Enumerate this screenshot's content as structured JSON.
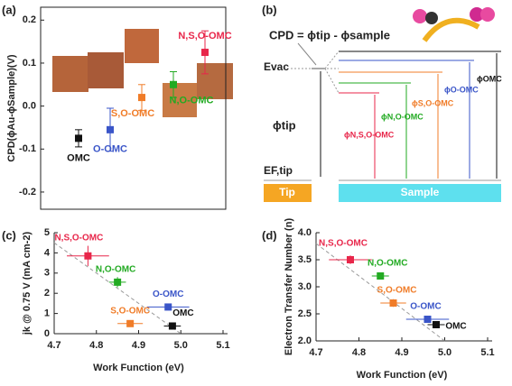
{
  "chart_data": [
    {
      "type": "errorbar",
      "panel": "(a)",
      "ylabel": "CPD(ϕAu-ϕSample)(V)",
      "categories": [
        "OMC",
        "O-OMC",
        "S,O-OMC",
        "N,O-OMC",
        "N,S,O-OMC"
      ],
      "values": [
        -0.075,
        -0.055,
        0.02,
        0.05,
        0.125
      ],
      "errors": [
        0.02,
        0.05,
        0.03,
        0.03,
        0.05
      ],
      "colors": [
        "#111111",
        "#3a55c8",
        "#f07c28",
        "#22aa22",
        "#e8264a"
      ],
      "ylim": [
        -0.24,
        0.23
      ],
      "yticks": [
        0.2,
        0.1,
        {
          "value": 0,
          "label": "0.0"
        },
        -0.1,
        -0.2
      ]
    },
    {
      "type": "scatter",
      "panel": "(c)",
      "xlabel": "Work Function (eV)",
      "ylabel": "jk @ 0.75 V (mA cm-2)",
      "xlim": [
        4.7,
        5.1
      ],
      "xticks": [
        4.7,
        4.8,
        4.9,
        {
          "value": 5,
          "label": "5.0"
        },
        5.1
      ],
      "ylim": [
        0,
        5
      ],
      "yticks": [
        0,
        1,
        2,
        3,
        4,
        5
      ],
      "series": [
        {
          "name": "N,S,O-OMC",
          "color": "#e8264a",
          "x": [
            4.78
          ],
          "values": [
            3.85
          ],
          "xerr": [
            0.05
          ],
          "yerr": [
            0.5
          ]
        },
        {
          "name": "N,O-OMC",
          "color": "#22aa22",
          "x": [
            4.85
          ],
          "values": [
            2.55
          ],
          "xerr": [
            0.02
          ],
          "yerr": [
            0.25
          ]
        },
        {
          "name": "O-OMC",
          "color": "#3a55c8",
          "x": [
            4.97
          ],
          "values": [
            1.32
          ],
          "xerr": [
            0.05
          ],
          "yerr": [
            0.1
          ]
        },
        {
          "name": "S,O-OMC",
          "color": "#f07c28",
          "x": [
            4.88
          ],
          "values": [
            0.5
          ],
          "xerr": [
            0.03
          ],
          "yerr": [
            0.08
          ]
        },
        {
          "name": "OMC",
          "color": "#111111",
          "x": [
            4.98
          ],
          "values": [
            0.38
          ],
          "xerr": [
            0.02
          ],
          "yerr": [
            0.15
          ]
        }
      ],
      "fit": {
        "x": [
          4.7,
          5.0
        ],
        "y": [
          4.5,
          0
        ]
      }
    },
    {
      "type": "scatter",
      "panel": "(d)",
      "xlabel": "Work Function (eV)",
      "ylabel": "Electron Transfer Number (n)",
      "xlim": [
        4.7,
        5.1
      ],
      "xticks": [
        4.7,
        4.8,
        4.9,
        {
          "value": 5,
          "label": "5.0"
        },
        5.1
      ],
      "ylim": [
        2,
        4
      ],
      "yticks": [
        {
          "value": 2,
          "label": "2.0"
        },
        2.5,
        {
          "value": 3,
          "label": "3.0"
        },
        3.5,
        {
          "value": 4,
          "label": "4.0"
        }
      ],
      "series": [
        {
          "name": "N,S,O-OMC",
          "color": "#e8264a",
          "x": [
            4.78
          ],
          "values": [
            3.5
          ],
          "xerr": [
            0.05
          ],
          "yerr": [
            0.08
          ]
        },
        {
          "name": "N,O-OMC",
          "color": "#22aa22",
          "x": [
            4.85
          ],
          "values": [
            3.2
          ],
          "xerr": [
            0.02
          ],
          "yerr": [
            0.05
          ]
        },
        {
          "name": "S,O-OMC",
          "color": "#f07c28",
          "x": [
            4.88
          ],
          "values": [
            2.7
          ],
          "xerr": [
            0.03
          ],
          "yerr": [
            0.07
          ]
        },
        {
          "name": "O-OMC",
          "color": "#3a55c8",
          "x": [
            4.96
          ],
          "values": [
            2.4
          ],
          "xerr": [
            0.05
          ],
          "yerr": [
            0.04
          ]
        },
        {
          "name": "OMC",
          "color": "#111111",
          "x": [
            4.98
          ],
          "values": [
            2.3
          ],
          "xerr": [
            0.02
          ],
          "yerr": [
            0.05
          ]
        }
      ],
      "fit": {
        "x": [
          4.7,
          5.0
        ],
        "y": [
          3.8,
          2.0
        ]
      }
    }
  ],
  "diagram": {
    "panel": "(b)",
    "equation": "CPD = ϕtip - ϕsample",
    "evac": "Evac",
    "phi_tip": "ϕtip",
    "ef_tip": "EF,tip",
    "tip": "Tip",
    "sample": "Sample",
    "levels": [
      "ϕN,S,O-OMC",
      "ϕN,O-OMC",
      "ϕS,O-OMC",
      "ϕO-OMC",
      "ϕOMC"
    ]
  }
}
